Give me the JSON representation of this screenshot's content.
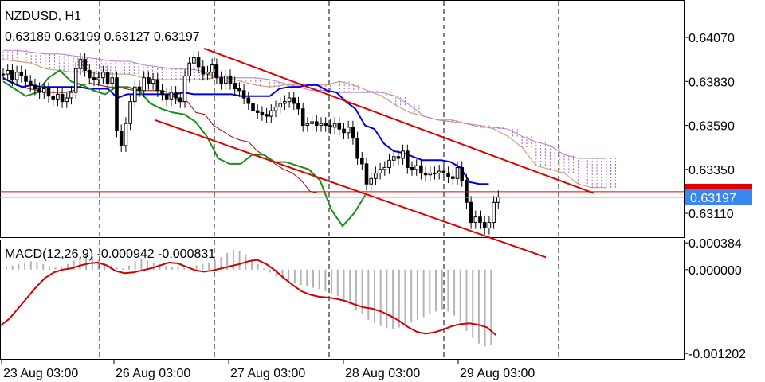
{
  "colors": {
    "background": "#ffffff",
    "bull_candle": "#000000",
    "bear_candle": "#000000",
    "channel": "#e00000",
    "tenkan": "#0000dd",
    "kijun": "#b00000",
    "chikou": "#1a8f1a",
    "senkou_a": "#c89060",
    "senkou_b": "#b080c8",
    "cloud_hatch": "#a060b0",
    "macd_hist": "#b4b4b4",
    "macd_signal": "#d00000",
    "price_tag": "#e00000",
    "price_tag_current": "#3a86f0",
    "grid_dash": "#000000"
  },
  "header": {
    "symbol_timeframe": "NZDUSD, H1",
    "ohlc": "0.63189 0.63199 0.63127 0.63197"
  },
  "macd_panel": {
    "label": "MACD(12,26,9) -0.000942 -0.000831"
  },
  "chart_data": [
    {
      "type": "candlestick",
      "title": "NZDUSD, H1",
      "y_ticks": [
        "0.64070",
        "0.63830",
        "0.63590",
        "0.63350",
        "0.63110"
      ],
      "ylim": [
        0.6298,
        0.6427
      ],
      "x_ticks": [
        "23 Aug 03:00",
        "26 Aug 03:00",
        "27 Aug 03:00",
        "28 Aug 03:00",
        "29 Aug 03:00"
      ],
      "current_price_label": "0.63197",
      "current_price": 0.63197,
      "bid_line_price": 0.63228,
      "day_separators": [
        "26 Aug",
        "27 Aug",
        "28 Aug",
        "29 Aug",
        "30 Aug"
      ],
      "candle_closes": [
        0.6387,
        0.6389,
        0.6384,
        0.6388,
        0.6386,
        0.6383,
        0.6381,
        0.6379,
        0.6377,
        0.6379,
        0.6375,
        0.6373,
        0.6376,
        0.6372,
        0.6374,
        0.6377,
        0.639,
        0.6395,
        0.6389,
        0.6385,
        0.6384,
        0.6385,
        0.6388,
        0.6382,
        0.6385,
        0.6356,
        0.6348,
        0.636,
        0.6372,
        0.638,
        0.6378,
        0.6385,
        0.6382,
        0.6384,
        0.6378,
        0.6376,
        0.6373,
        0.6377,
        0.6374,
        0.6372,
        0.6386,
        0.6393,
        0.6396,
        0.6391,
        0.6387,
        0.6388,
        0.6392,
        0.6385,
        0.6382,
        0.6386,
        0.6382,
        0.6379,
        0.6378,
        0.6374,
        0.6371,
        0.6367,
        0.6366,
        0.6365,
        0.6364,
        0.6367,
        0.6369,
        0.6371,
        0.6372,
        0.6374,
        0.6371,
        0.6368,
        0.6359,
        0.636,
        0.6361,
        0.6359,
        0.636,
        0.6359,
        0.6358,
        0.636,
        0.6357,
        0.6355,
        0.6358,
        0.6352,
        0.6341,
        0.6338,
        0.6327,
        0.633,
        0.6333,
        0.6335,
        0.6336,
        0.634,
        0.6342,
        0.6341,
        0.6345,
        0.6336,
        0.6335,
        0.6337,
        0.6333,
        0.6332,
        0.6333,
        0.6333,
        0.6334,
        0.6333,
        0.6331,
        0.633,
        0.6336,
        0.6329,
        0.6317,
        0.6306,
        0.6309,
        0.6306,
        0.6303,
        0.6306,
        0.6317,
        0.632
      ],
      "channel_upper": [
        [
          0.6401,
          0.6322
        ]
      ],
      "channel_lower": [
        [
          0.6362,
          0.6287
        ]
      ],
      "tenkan_sen": [
        0.6385,
        0.6382,
        0.638,
        0.6381,
        0.638,
        0.638,
        0.638,
        0.638,
        0.638,
        0.6379,
        0.6379,
        0.6379,
        0.6374,
        0.6376,
        0.6376,
        0.6376,
        0.6376,
        0.6376,
        0.6376,
        0.6377,
        0.6376,
        0.6376,
        0.6376,
        0.6376,
        0.6376,
        0.6375,
        0.6375,
        0.6375,
        0.6375,
        0.6379,
        0.638,
        0.638,
        0.6381,
        0.6381,
        0.6378,
        0.6377,
        0.6372,
        0.6368,
        0.6359,
        0.6357,
        0.6349,
        0.6345,
        0.6344,
        0.6342,
        0.634,
        0.634,
        0.634,
        0.6339,
        0.6336,
        0.6328,
        0.6327,
        0.6327
      ],
      "kijun_sen": [
        0.6384,
        0.6383,
        0.638,
        0.6379,
        0.6378,
        0.6377,
        0.6377,
        0.6377,
        0.6378,
        0.6381,
        0.6382,
        0.6381,
        0.638,
        0.638,
        0.6379,
        0.6378,
        0.6378,
        0.6378,
        0.6378,
        0.6377,
        0.6372,
        0.6372,
        0.6366,
        0.6365,
        0.6359,
        0.6356,
        0.6353,
        0.6351,
        0.635,
        0.6345,
        0.6342,
        0.6338,
        0.6335,
        0.6333,
        0.6329,
        0.6323,
        0.6322
      ],
      "chikou_span": [
        0.6383,
        0.6379,
        0.6375,
        0.6377,
        0.6385,
        0.6389,
        0.6383,
        0.6381,
        0.6378,
        0.6376,
        0.638,
        0.638,
        0.6378,
        0.6371,
        0.6368,
        0.6366,
        0.6365,
        0.6361,
        0.6353,
        0.6341,
        0.6338,
        0.6338,
        0.6343,
        0.6343,
        0.6339,
        0.6339,
        0.6337,
        0.6335,
        0.6329,
        0.6313,
        0.6304,
        0.6311,
        0.6321
      ],
      "senkou_a": [
        0.6395,
        0.6394,
        0.6393,
        0.639,
        0.6389,
        0.6388,
        0.6388,
        0.6387,
        0.6387,
        0.6387,
        0.6385,
        0.6384,
        0.6384,
        0.6384,
        0.6384,
        0.6385,
        0.6385,
        0.6383,
        0.6381,
        0.638,
        0.6381,
        0.6381,
        0.6381,
        0.6381,
        0.6383,
        0.6381,
        0.6378,
        0.6375,
        0.637,
        0.6366,
        0.6364,
        0.6362,
        0.6361,
        0.636,
        0.6359,
        0.6357,
        0.6353,
        0.6347,
        0.6337,
        0.6335,
        0.6333,
        0.6327,
        0.6325,
        0.6325
      ],
      "senkou_b": [
        0.64,
        0.64,
        0.6399,
        0.6398,
        0.6398,
        0.6397,
        0.6396,
        0.6395,
        0.6394,
        0.6394,
        0.6392,
        0.6391,
        0.639,
        0.639,
        0.6389,
        0.6386,
        0.6385,
        0.6385,
        0.6385,
        0.6384,
        0.6382,
        0.638,
        0.6378,
        0.6378,
        0.6377,
        0.6377,
        0.6377,
        0.6377,
        0.6375,
        0.637,
        0.6364,
        0.6362,
        0.6362,
        0.636,
        0.6358,
        0.6358,
        0.6357,
        0.6353,
        0.635,
        0.6348,
        0.6343,
        0.6341,
        0.6341,
        0.6341
      ]
    },
    {
      "type": "histogram",
      "title": "MACD(12,26,9) -0.000942 -0.000831",
      "y_ticks": [
        "0.000384",
        "0.000000",
        "-0.001202"
      ],
      "ylim": [
        -0.00128,
        0.00042
      ],
      "histogram": [
        5e-05,
        6e-05,
        8e-05,
        0.0001,
        0.00012,
        0.00011,
        8e-05,
        5e-05,
        3e-05,
        4e-05,
        8e-05,
        0.00013,
        0.00018,
        0.00022,
        0.00019,
        0.00014,
        0.0001,
        6e-05,
        3e-05,
        2e-05,
        6e-05,
        0.00012,
        0.00016,
        0.00013,
        0.0001,
        8e-05,
        5e-05,
        4e-05,
        3e-05,
        2e-05,
        4e-05,
        6e-05,
        8e-05,
        0.0001,
        0.00013,
        0.00018,
        0.00024,
        0.00028,
        0.00026,
        0.00022,
        0.00015,
        8e-05,
        2e-05,
        -4e-05,
        -0.0001,
        -0.00014,
        -0.00017,
        -0.0002,
        -0.00022,
        -0.00024,
        -0.00026,
        -0.00028,
        -0.00031,
        -0.00034,
        -0.00038,
        -0.00044,
        -0.0005,
        -0.00058,
        -0.00064,
        -0.00072,
        -0.00077,
        -0.00081,
        -0.00084,
        -0.00085,
        -0.00083,
        -0.0008,
        -0.00076,
        -0.00072,
        -0.00068,
        -0.00064,
        -0.0006,
        -0.00058,
        -0.0006,
        -0.00066,
        -0.00075,
        -0.00088,
        -0.00098,
        -0.00106,
        -0.0011,
        -0.00108
      ],
      "signal_line": [
        -0.0008,
        -0.0007,
        -0.00055,
        -0.0004,
        -0.00025,
        -0.00012,
        -4e-05,
        0.0,
        2e-05,
        6e-05,
        9e-05,
        0.0001,
        6e-05,
        -2e-05,
        -5e-05,
        -4e-05,
        -1e-05,
        2e-05,
        6e-05,
        0.0001,
        9e-05,
        4e-05,
        -1e-05,
        -3e-05,
        -1e-05,
        2e-05,
        5e-05,
        8e-05,
        0.00012,
        0.00014,
        8e-05,
        -1e-05,
        -0.00012,
        -0.00022,
        -0.00031,
        -0.00036,
        -0.00039,
        -0.0004,
        -0.00042,
        -0.00045,
        -0.0005,
        -0.00054,
        -0.00056,
        -0.0006,
        -0.00066,
        -0.00073,
        -0.00082,
        -0.00089,
        -0.00092,
        -0.0009,
        -0.00086,
        -0.00081,
        -0.00078,
        -0.00077,
        -0.00079,
        -0.00083,
        -0.00094
      ]
    }
  ]
}
